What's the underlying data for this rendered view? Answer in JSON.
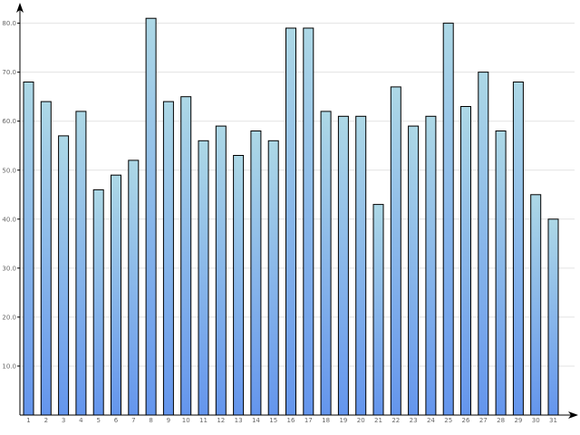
{
  "chart_data": {
    "type": "bar",
    "title": "",
    "xlabel": "",
    "ylabel": "",
    "categories": [
      "1",
      "2",
      "3",
      "4",
      "5",
      "6",
      "7",
      "8",
      "9",
      "10",
      "11",
      "12",
      "13",
      "14",
      "15",
      "16",
      "17",
      "18",
      "19",
      "20",
      "21",
      "22",
      "23",
      "24",
      "25",
      "26",
      "27",
      "28",
      "29",
      "30",
      "31"
    ],
    "values": [
      68,
      64,
      57,
      62,
      46,
      49,
      52,
      81,
      64,
      65,
      56,
      59,
      53,
      58,
      56,
      79,
      79,
      62,
      61,
      61,
      43,
      67,
      59,
      61,
      80,
      63,
      70,
      58,
      68,
      45,
      40
    ],
    "ylim": [
      0,
      84
    ],
    "yticks": [
      10,
      20,
      30,
      40,
      50,
      60,
      70,
      80
    ],
    "ytick_labels": [
      "10.0",
      "20.0",
      "30.0",
      "40.0",
      "50.0",
      "60.0",
      "70.0",
      "80.0"
    ],
    "grid": true,
    "legend": "none",
    "colors": {
      "bar_top": "#add8e6",
      "bar_bottom": "#6495ed",
      "grid": "#e3e3e3",
      "axis": "#000000",
      "tick_text": "#666666"
    }
  }
}
